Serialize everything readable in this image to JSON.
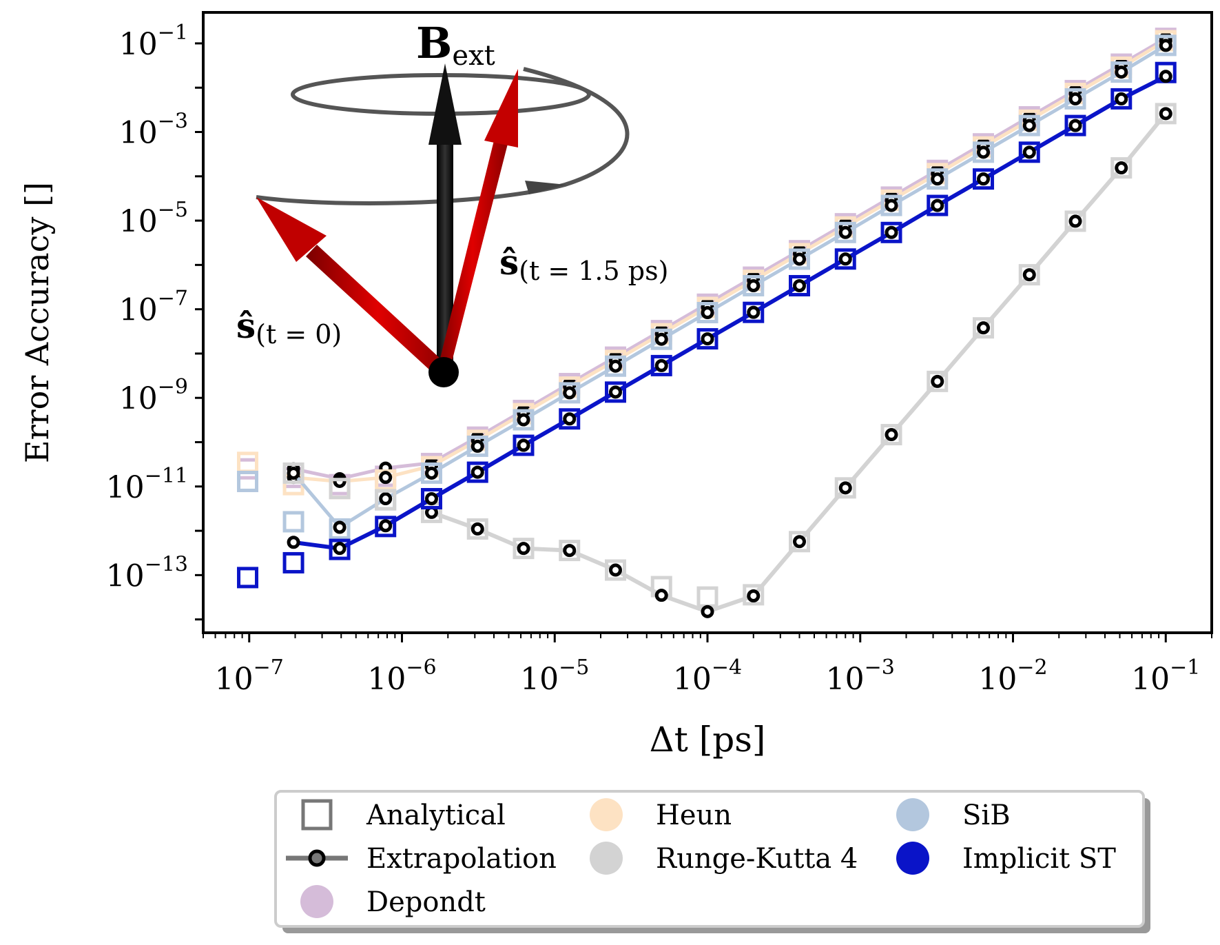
{
  "chart_data": {
    "type": "line",
    "xscale": "log",
    "yscale": "log",
    "xlabel": "Δt [ps]",
    "ylabel": "Error Accuracy []",
    "xlim": [
      5e-08,
      0.2
    ],
    "ylim": [
      5e-15,
      0.5
    ],
    "xticks": [
      {
        "value": 1e-07,
        "base": "10",
        "exp": "−7"
      },
      {
        "value": 1e-06,
        "base": "10",
        "exp": "−6"
      },
      {
        "value": 1e-05,
        "base": "10",
        "exp": "−5"
      },
      {
        "value": 0.0001,
        "base": "10",
        "exp": "−4"
      },
      {
        "value": 0.001,
        "base": "10",
        "exp": "−3"
      },
      {
        "value": 0.01,
        "base": "10",
        "exp": "−2"
      },
      {
        "value": 0.1,
        "base": "10",
        "exp": "−1"
      }
    ],
    "yticks": [
      {
        "value": 0.1,
        "base": "10",
        "exp": "−1"
      },
      {
        "value": 0.001,
        "base": "10",
        "exp": "−3"
      },
      {
        "value": 1e-05,
        "base": "10",
        "exp": "−5"
      },
      {
        "value": 1e-07,
        "base": "10",
        "exp": "−7"
      },
      {
        "value": 1e-09,
        "base": "10",
        "exp": "−9"
      },
      {
        "value": 1e-11,
        "base": "10",
        "exp": "−11"
      },
      {
        "value": 1e-13,
        "base": "10",
        "exp": "−13"
      }
    ],
    "x": [
      9.77e-08,
      1.95e-07,
      3.91e-07,
      7.81e-07,
      1.5625e-06,
      3.125e-06,
      6.25e-06,
      1.25e-05,
      2.5e-05,
      5e-05,
      0.0001,
      0.0002,
      0.0004,
      0.0008,
      0.0016,
      0.0032,
      0.0064,
      0.0128,
      0.0256,
      0.0512,
      0.1
    ],
    "series": [
      {
        "name": "Depondt",
        "color": "#d5bcd9",
        "analytical": [
          2.5e-11,
          1.6e-11,
          1.1e-11,
          1.7e-11,
          3.3e-11,
          1.3e-10,
          5.2e-10,
          2.1e-09,
          8.3e-09,
          3.3e-08,
          1.3e-07,
          5.3e-07,
          2.1e-06,
          8.5e-06,
          3.4e-05,
          0.000136,
          0.00054,
          0.0022,
          0.0086,
          0.034,
          0.13
        ],
        "extrapolation": [
          null,
          2.5e-11,
          1.5e-11,
          2.6e-11,
          3.4e-11,
          1.3e-10,
          5.2e-10,
          2.1e-09,
          8.3e-09,
          3.3e-08,
          1.33e-07,
          5.3e-07,
          2.1e-06,
          8.5e-06,
          3.4e-05,
          0.000136,
          0.00054,
          0.0022,
          0.0086,
          0.034,
          0.13
        ]
      },
      {
        "name": "Heun",
        "color": "#fde2c3",
        "analytical": [
          3.5e-11,
          1.1e-11,
          9e-12,
          1.4e-11,
          2.8e-11,
          1.1e-10,
          4.4e-10,
          1.75e-09,
          7e-09,
          2.8e-08,
          1.1e-07,
          4.5e-07,
          1.8e-06,
          7.2e-06,
          2.9e-05,
          0.000115,
          0.00046,
          0.00185,
          0.0074,
          0.029,
          0.115
        ],
        "extrapolation": [
          null,
          1.6e-11,
          1.3e-11,
          1.6e-11,
          2.9e-11,
          1.1e-10,
          4.5e-10,
          1.8e-09,
          7e-09,
          2.8e-08,
          1.12e-07,
          4.5e-07,
          1.8e-06,
          7.2e-06,
          2.9e-05,
          0.000115,
          0.00046,
          0.00185,
          0.0074,
          0.029,
          0.115
        ]
      },
      {
        "name": "SiB",
        "color": "#b3c7de",
        "analytical": [
          1.3e-11,
          1.6e-12,
          1.1e-12,
          5e-12,
          2e-11,
          8.1e-11,
          3.2e-10,
          1.3e-09,
          5.2e-09,
          2.1e-08,
          8.4e-08,
          3.4e-07,
          1.35e-06,
          5.4e-06,
          2.2e-05,
          8.7e-05,
          0.00035,
          0.0014,
          0.0056,
          0.0225,
          0.09
        ],
        "extrapolation": [
          null,
          2e-11,
          1.2e-12,
          5.3e-12,
          2e-11,
          8.1e-11,
          3.2e-10,
          1.3e-09,
          5.2e-09,
          2.1e-08,
          8.4e-08,
          3.4e-07,
          1.35e-06,
          5.4e-06,
          2.2e-05,
          8.7e-05,
          0.00035,
          0.0014,
          0.0056,
          0.0225,
          0.09
        ]
      },
      {
        "name": "Runge-Kutta 4",
        "color": "#d3d3d3",
        "analytical": [
          null,
          2e-11,
          9e-12,
          5e-12,
          2.6e-12,
          1.1e-12,
          4e-13,
          3.6e-13,
          1.3e-13,
          5.5e-14,
          3.2e-14,
          3.6e-14,
          5.7e-13,
          9.3e-12,
          1.48e-10,
          2.35e-09,
          3.8e-08,
          6e-07,
          9.7e-06,
          0.000155,
          0.0026
        ],
        "extrapolation": [
          null,
          null,
          null,
          null,
          2.6e-12,
          1.1e-12,
          4e-13,
          3.6e-13,
          1.3e-13,
          3.5e-14,
          1.5e-14,
          3.4e-14,
          5.7e-13,
          9.3e-12,
          1.48e-10,
          2.35e-09,
          3.8e-08,
          6e-07,
          9.7e-06,
          0.000155,
          0.0026
        ]
      },
      {
        "name": "Implicit ST",
        "color": "#0a14c8",
        "analytical": [
          8.8e-14,
          1.9e-13,
          3.8e-13,
          1.25e-12,
          5.3e-12,
          2.1e-11,
          8.5e-11,
          3.35e-10,
          1.35e-09,
          5.35e-09,
          2.15e-08,
          8.5e-08,
          3.4e-07,
          1.36e-06,
          5.4e-06,
          2.2e-05,
          8.7e-05,
          0.00035,
          0.0014,
          0.0056,
          0.022
        ],
        "extrapolation": [
          null,
          5.5e-13,
          4e-13,
          1.3e-12,
          5.3e-12,
          2.1e-11,
          8.5e-11,
          3.35e-10,
          1.35e-09,
          5.35e-09,
          2.15e-08,
          8.5e-08,
          3.4e-07,
          1.36e-06,
          5.4e-06,
          2.2e-05,
          8.7e-05,
          0.00035,
          0.0014,
          0.0056,
          0.018
        ]
      }
    ],
    "legend": {
      "placement": "below",
      "entries": [
        {
          "label": "Analytical",
          "kind": "open-square"
        },
        {
          "label": "Heun",
          "kind": "dot",
          "color": "#fde2c3"
        },
        {
          "label": "SiB",
          "kind": "dot",
          "color": "#b3c7de"
        },
        {
          "label": "Extrapolation",
          "kind": "line-marker"
        },
        {
          "label": "Runge-Kutta 4",
          "kind": "dot",
          "color": "#d3d3d3"
        },
        {
          "label": "Implicit ST",
          "kind": "dot",
          "color": "#0a14c8"
        },
        {
          "label": "Depondt",
          "kind": "dot",
          "color": "#d5bcd9"
        }
      ]
    },
    "inset": {
      "field_label_main": "B",
      "field_label_sub": "ext",
      "spin_t0_main": "ŝ",
      "spin_t0_sub": "(t = 0)",
      "spin_t1_main": "ŝ",
      "spin_t1_sub": "(t = 1.5 ps)"
    }
  }
}
